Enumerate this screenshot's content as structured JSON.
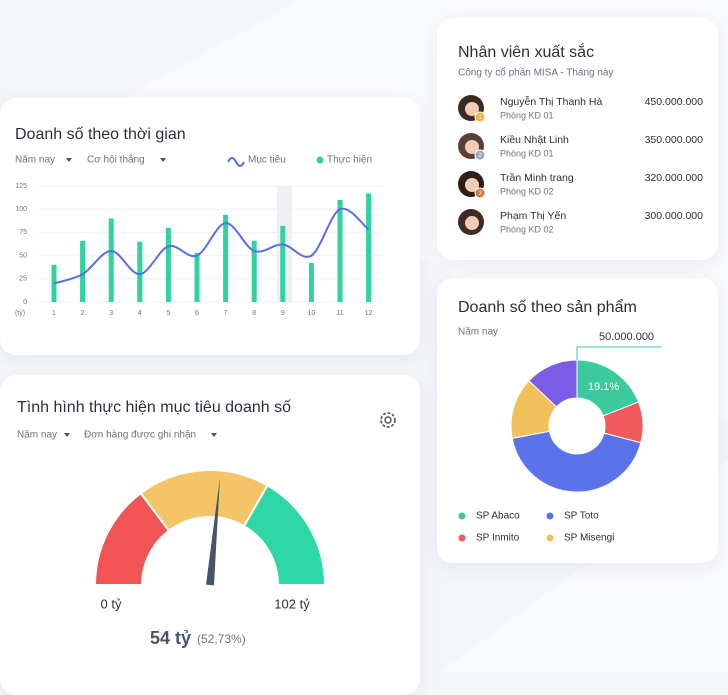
{
  "sales_time": {
    "title": "Doanh số theo thời gian",
    "filters": [
      "Năm nay",
      "Cơ hội thắng"
    ],
    "chart_data": {
      "type": "bar",
      "unit_label": "(tỷ)",
      "categories": [
        "1",
        "2",
        "3",
        "4",
        "5",
        "6",
        "7",
        "8",
        "9",
        "10",
        "11",
        "12"
      ],
      "series": [
        {
          "name": "Mục tiêu",
          "type": "line",
          "color": "#5b6ee1",
          "values": [
            20,
            30,
            55,
            30,
            60,
            50,
            85,
            55,
            62,
            50,
            100,
            78
          ]
        },
        {
          "name": "Thực hiện",
          "type": "bar",
          "color": "#2ed3a0",
          "values": [
            40,
            66,
            90,
            65,
            80,
            53,
            94,
            66,
            82,
            42,
            110,
            117
          ]
        }
      ],
      "ylim": [
        0,
        125
      ],
      "yticks": [
        0,
        25,
        50,
        75,
        100,
        125
      ],
      "grid": true,
      "legend": "top-right"
    }
  },
  "employees": {
    "title": "Nhân viên xuất sắc",
    "subtitle": "Công ty cổ phần MISA - Tháng này",
    "rows": [
      {
        "name": "Nguyễn Thị Thanh Hà",
        "department": "Phòng KD 01",
        "amount": "450.000.000",
        "rank": 1
      },
      {
        "name": "Kiều Nhật Linh",
        "department": "Phòng KD 01",
        "amount": "350.000.000",
        "rank": 2
      },
      {
        "name": "Trần Minh trang",
        "department": "Phòng KD 02",
        "amount": "320.000.000",
        "rank": 3
      },
      {
        "name": "Phạm Thị Yến",
        "department": "Phòng KD 02",
        "amount": "300.000.000"
      }
    ]
  },
  "sales_product": {
    "title": "Doanh số theo sản phẩm",
    "filters": [
      "Năm nay"
    ],
    "chart_data": {
      "type": "pie",
      "categories": [
        "SP Abaco",
        "SP Inmito",
        "SP Toto",
        "SP Misengi",
        null
      ],
      "values": [
        19.1,
        10,
        42.9,
        15,
        13
      ],
      "value_labels": [
        "19.1%",
        null,
        null,
        null,
        null
      ],
      "colors": [
        "#3cc99b",
        "#f05a5a",
        "#5b73e8",
        "#f0c05a",
        "#7b5ce6"
      ],
      "annotation": "50.000.000",
      "legend": "bottom"
    }
  },
  "sales_goal": {
    "title": "Tình hình thực hiện mục tiêu doanh số",
    "filters": [
      "Năm nay",
      "Đơn hàng được ghi nhận"
    ],
    "chart_data": {
      "type": "gauge",
      "min": 0,
      "max": 102,
      "min_label": "0 tỷ",
      "max_label": "102 tỷ",
      "values": [
        54
      ],
      "value_labels": [
        "54 tỷ"
      ],
      "percent_label": "(52,73%)",
      "bands": [
        {
          "from": 0,
          "to": 30,
          "color": "#f05454"
        },
        {
          "from": 30,
          "to": 68,
          "color": "#f3c567"
        },
        {
          "from": 68,
          "to": 102,
          "color": "#2fd6a6"
        }
      ],
      "needle_color": "#4a5468"
    }
  }
}
